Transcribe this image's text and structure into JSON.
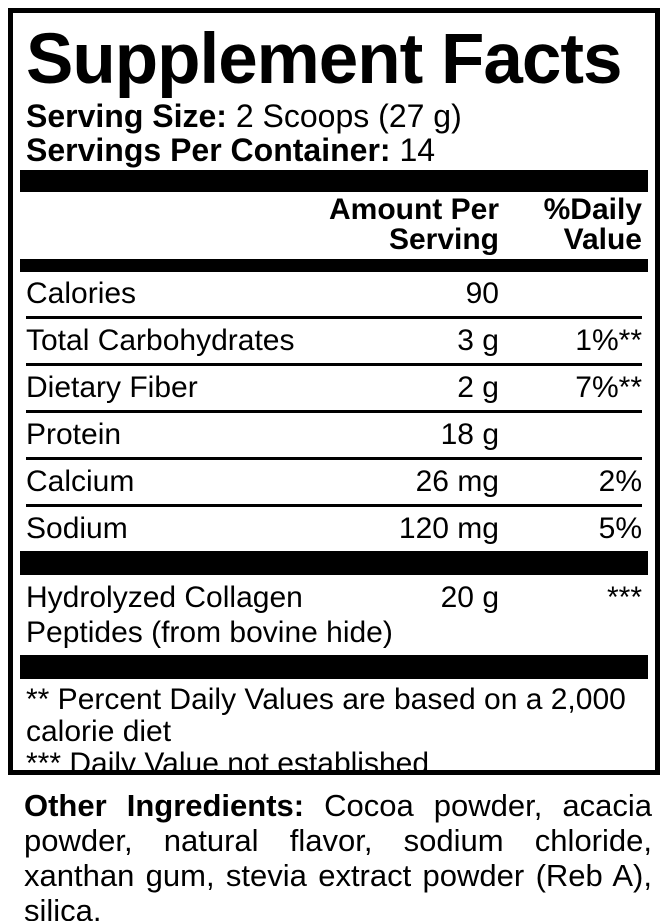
{
  "title": "Supplement Facts",
  "serving_size": {
    "label": "Serving Size:",
    "value": "2 Scoops (27 g)"
  },
  "servings_per_container": {
    "label": "Servings Per Container:",
    "value": "14"
  },
  "table": {
    "headers": {
      "amount": "Amount Per Serving",
      "daily_value": "%Daily Value"
    },
    "rows": [
      {
        "name": "Calories",
        "amount": "90",
        "dv": ""
      },
      {
        "name": "Total Carbohydrates",
        "amount": "3 g",
        "dv": "1%**"
      },
      {
        "name": "Dietary Fiber",
        "amount": "2 g",
        "dv": "7%**"
      },
      {
        "name": "Protein",
        "amount": "18 g",
        "dv": ""
      },
      {
        "name": "Calcium",
        "amount": "26 mg",
        "dv": "2%"
      },
      {
        "name": "Sodium",
        "amount": "120 mg",
        "dv": "5%"
      }
    ],
    "collagen_row": {
      "name_line1": "Hydrolyzed Collagen",
      "name_line2": "Peptides (from bovine hide)",
      "amount": "20 g",
      "dv": "***"
    }
  },
  "footnotes": [
    "** Percent Daily Values are based on a 2,000 calorie diet",
    "*** Daily Value not established"
  ],
  "other_ingredients": {
    "label": "Other Ingredients:",
    "text": "Cocoa powder, acacia powder, natural flavor, sodium chloride, xanthan gum, stevia extract powder (Reb A), silica."
  },
  "colors": {
    "ink": "#000000",
    "background": "#ffffff"
  }
}
